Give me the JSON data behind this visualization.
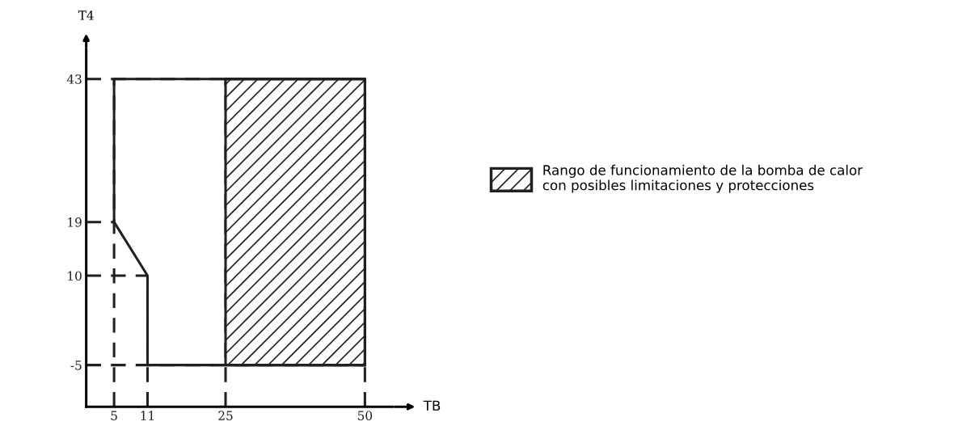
{
  "chart_data": {
    "type": "line",
    "xlabel": "TB",
    "ylabel": "T4",
    "xlim": [
      0,
      55
    ],
    "ylim": [
      -12,
      48
    ],
    "xticks": [
      5,
      11,
      25,
      50
    ],
    "yticks": [
      -5,
      10,
      19,
      43
    ],
    "series": [
      {
        "color": "#231f20",
        "x": [
          5,
          5,
          50,
          50
        ],
        "values": [
          19,
          43,
          43,
          -5
        ]
      },
      {
        "color": "#231f20",
        "x": [
          5,
          11,
          11,
          50
        ],
        "values": [
          19,
          10,
          -5,
          -5
        ]
      },
      {
        "name": "Rango de funcionamiento de la bomba de calor\ncon posibles limitaciones y protecciones",
        "color": "#231f20",
        "x": [
          25,
          50
        ],
        "values": [
          43,
          43
        ],
        "lower": [
          -5,
          -5
        ],
        "upper": [
          43,
          43
        ]
      }
    ],
    "ref_lines": [
      {
        "axis": "y",
        "value": 43,
        "line_style": "dashed",
        "color": "#231f20"
      },
      {
        "axis": "y",
        "value": 19,
        "line_style": "dashed",
        "color": "#231f20"
      },
      {
        "axis": "y",
        "value": 10,
        "line_style": "dashed",
        "color": "#231f20"
      },
      {
        "axis": "y",
        "value": -5,
        "line_style": "dashed",
        "color": "#231f20"
      },
      {
        "axis": "x",
        "value": 5,
        "line_style": "dashed",
        "color": "#231f20"
      },
      {
        "axis": "x",
        "value": 11,
        "line_style": "dashed",
        "color": "#231f20"
      },
      {
        "axis": "x",
        "value": 25,
        "line_style": "dashed",
        "color": "#231f20"
      },
      {
        "axis": "x",
        "value": 50,
        "line_style": "dashed",
        "color": "#231f20"
      }
    ],
    "legend": "right",
    "grid": false,
    "marker": "none",
    "line_style": "solid"
  }
}
